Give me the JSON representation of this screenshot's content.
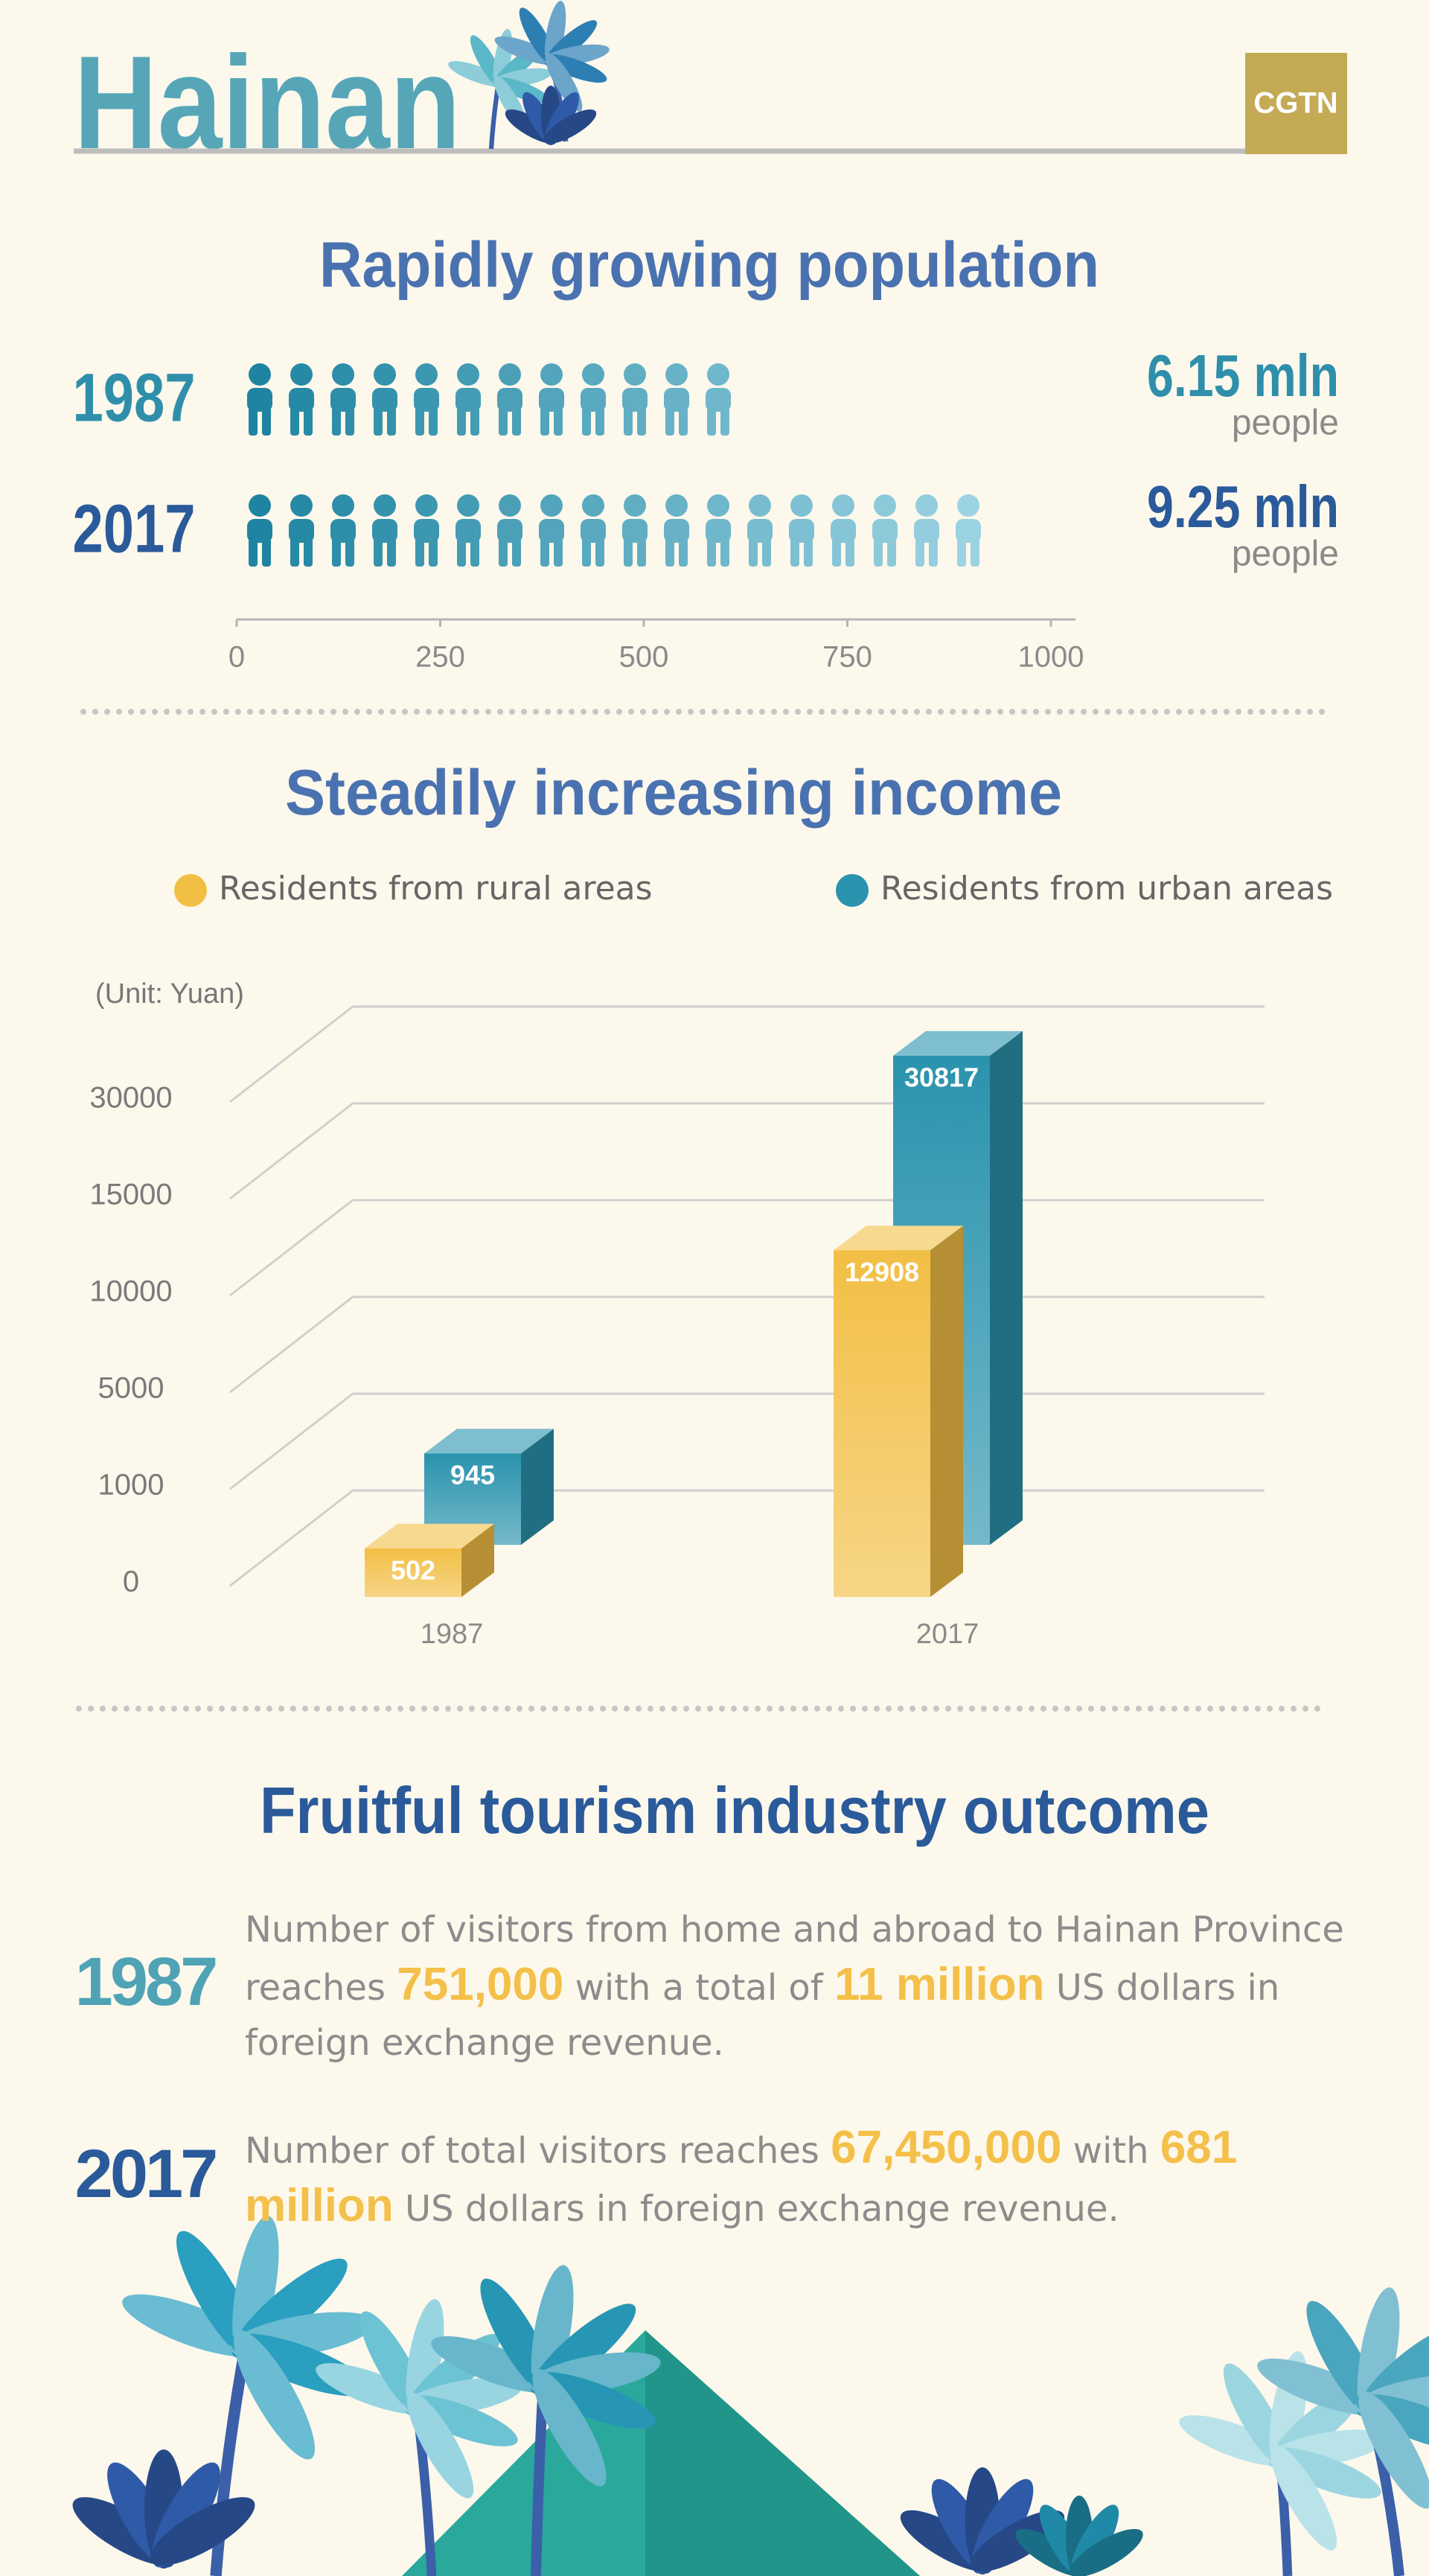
{
  "header": {
    "title": "Hainan",
    "logo": "CGTN"
  },
  "chart_data": [
    {
      "type": "pictogram",
      "title": "Rapidly growing population",
      "categories": [
        "1987",
        "2017"
      ],
      "values": [
        615,
        925
      ],
      "value_labels": [
        "6.15 mln",
        "9.25 mln"
      ],
      "value_unit": "people",
      "colors": [
        "#2f8fab",
        "#2a5a9a"
      ],
      "icon_colors": [
        "#1f84a1",
        "#9bd3e2"
      ],
      "xlim": [
        0,
        1000
      ],
      "xticks": [
        0,
        250,
        500,
        750,
        1000
      ]
    },
    {
      "type": "bar3d",
      "title": "Steadily increasing income",
      "unit": "(Unit:  Yuan)",
      "categories": [
        "1987",
        "2017"
      ],
      "series": [
        {
          "name": "Residents from rural areas",
          "color": "#f2bf45",
          "values": [
            502,
            12908
          ]
        },
        {
          "name": "Residents from urban areas",
          "color": "#2a93ad",
          "values": [
            945,
            30817
          ]
        }
      ],
      "ylim": [
        0,
        30000
      ],
      "yticks": [
        0,
        1000,
        5000,
        10000,
        15000,
        30000
      ],
      "tick_spacing": "even",
      "grid": true,
      "legend": "top"
    }
  ],
  "tourism": {
    "title": "Fruitful tourism industry outcome",
    "entries": [
      {
        "year": "1987",
        "color": "#4fa3b5",
        "parts": [
          "Number of visitors from home and abroad to Hainan Province reaches",
          "751,000",
          "with a total of",
          "11 million",
          "US dollars in foreign exchange revenue."
        ]
      },
      {
        "year": "2017",
        "color": "#2a5a9a",
        "parts": [
          "Number of total visitors reaches",
          "67,450,000",
          "with",
          "681 million",
          "US dollars in foreign exchange revenue."
        ]
      }
    ]
  }
}
